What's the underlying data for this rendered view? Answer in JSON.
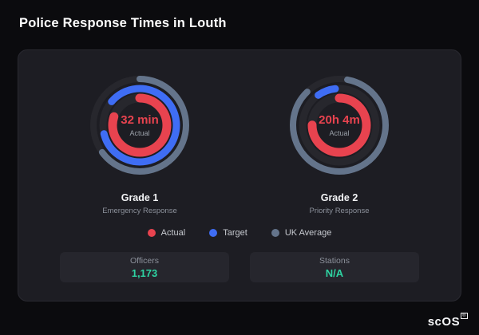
{
  "page": {
    "title": "Police Response Times in Louth",
    "watermark": "scOS",
    "watermark_reg": "®"
  },
  "legend": [
    {
      "label": "Actual",
      "color": "#e8434f"
    },
    {
      "label": "Target",
      "color": "#3f6df4"
    },
    {
      "label": "UK Average",
      "color": "#64748b"
    }
  ],
  "stats": [
    {
      "label": "Officers",
      "value": "1,173"
    },
    {
      "label": "Stations",
      "value": "N/A"
    }
  ],
  "chart_data": {
    "type": "radial-gauge",
    "gauges": [
      {
        "name": "Grade 1",
        "sublabel": "Emergency Response",
        "center_value": "32 min",
        "center_label": "Actual",
        "rings": [
          {
            "series": "Actual",
            "color": "#e8434f",
            "frac": 0.8,
            "start_deg": -90
          },
          {
            "series": "Target",
            "color": "#3f6df4",
            "frac": 0.85,
            "start_deg": -140
          },
          {
            "series": "UK Average",
            "color": "#64748b",
            "frac": 0.65,
            "start_deg": -90
          }
        ]
      },
      {
        "name": "Grade 2",
        "sublabel": "Priority Response",
        "center_value": "20h 4m",
        "center_label": "Actual",
        "rings": [
          {
            "series": "Actual",
            "color": "#e8434f",
            "frac": 0.75,
            "start_deg": -90
          },
          {
            "series": "Target",
            "color": "#3f6df4",
            "frac": 0.08,
            "start_deg": -125
          },
          {
            "series": "UK Average",
            "color": "#64748b",
            "frac": 0.85,
            "start_deg": -80
          }
        ]
      }
    ]
  }
}
